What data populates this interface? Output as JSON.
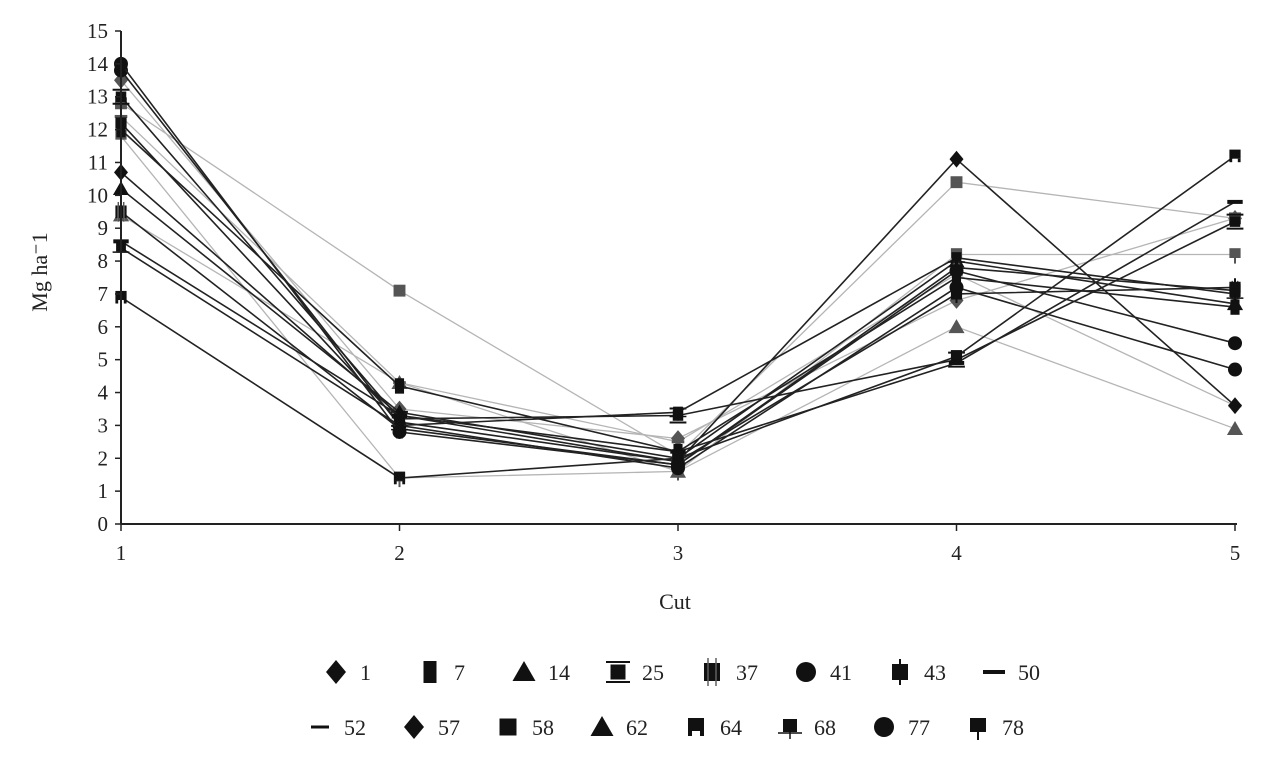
{
  "chart_data": {
    "type": "line",
    "title": "",
    "xlabel": "Cut",
    "ylabel": "Mg ha⁻1",
    "x": [
      1,
      2,
      3,
      4,
      5
    ],
    "x_tick_labels": [
      "1",
      "2",
      "3",
      "4",
      "5"
    ],
    "ylim": [
      0,
      15
    ],
    "y_tick_labels": [
      "0",
      "1",
      "2",
      "3",
      "4",
      "5",
      "6",
      "7",
      "8",
      "9",
      "10",
      "11",
      "12",
      "13",
      "14",
      "15"
    ],
    "grid": false,
    "legend_position": "bottom",
    "series": [
      {
        "name": "1",
        "marker": "diamond",
        "color": "#222222",
        "values": [
          10.7,
          3.3,
          1.9,
          11.1,
          3.6
        ]
      },
      {
        "name": "7",
        "marker": "tall-square",
        "color": "#222222",
        "values": [
          12.0,
          4.2,
          2.2,
          7.5,
          6.6
        ]
      },
      {
        "name": "14",
        "marker": "triangle",
        "color": "#222222",
        "values": [
          10.2,
          3.4,
          2.0,
          8.0,
          6.7
        ]
      },
      {
        "name": "25",
        "marker": "bowtie-square",
        "color": "#222222",
        "values": [
          13.0,
          3.2,
          3.3,
          5.0,
          9.2
        ]
      },
      {
        "name": "37",
        "marker": "ticked-square",
        "color": "#222222",
        "values": [
          9.5,
          2.9,
          1.8,
          7.8,
          7.1
        ]
      },
      {
        "name": "41",
        "marker": "circle",
        "color": "#222222",
        "values": [
          13.8,
          3.0,
          1.7,
          7.2,
          4.7
        ]
      },
      {
        "name": "43",
        "marker": "pin-square",
        "color": "#222222",
        "values": [
          12.2,
          3.1,
          1.9,
          7.0,
          7.2
        ]
      },
      {
        "name": "50",
        "marker": "dash",
        "color": "#222222",
        "values": [
          8.6,
          3.3,
          2.2,
          4.9,
          9.8
        ]
      },
      {
        "name": "52",
        "marker": "thin-dash",
        "color": "#b5b5b5",
        "values": [
          12.4,
          4.3,
          2.5,
          7.6,
          3.6
        ]
      },
      {
        "name": "57",
        "marker": "diamond",
        "color": "#b5b5b5",
        "values": [
          13.5,
          3.5,
          2.6,
          6.8,
          9.3
        ]
      },
      {
        "name": "58",
        "marker": "square",
        "color": "#b5b5b5",
        "values": [
          12.8,
          7.1,
          2.1,
          10.4,
          9.3
        ]
      },
      {
        "name": "62",
        "marker": "triangle",
        "color": "#b5b5b5",
        "values": [
          9.4,
          4.3,
          1.6,
          6.0,
          2.9
        ]
      },
      {
        "name": "64",
        "marker": "notched-square",
        "color": "#222222",
        "values": [
          6.9,
          1.4,
          2.0,
          5.1,
          11.2
        ]
      },
      {
        "name": "68",
        "marker": "wing-square",
        "color": "#222222",
        "values": [
          8.4,
          3.0,
          3.4,
          8.1,
          7.0
        ]
      },
      {
        "name": "77",
        "marker": "circle",
        "color": "#222222",
        "values": [
          14.0,
          2.8,
          1.8,
          7.7,
          5.5
        ]
      },
      {
        "name": "78",
        "marker": "stem-square",
        "color": "#b5b5b5",
        "values": [
          11.8,
          1.4,
          1.6,
          8.2,
          8.2
        ]
      }
    ],
    "legend_rows": [
      [
        "1",
        "7",
        "14",
        "25",
        "37",
        "41",
        "43",
        "50"
      ],
      [
        "52",
        "57",
        "58",
        "62",
        "64",
        "68",
        "77",
        "78"
      ]
    ]
  }
}
